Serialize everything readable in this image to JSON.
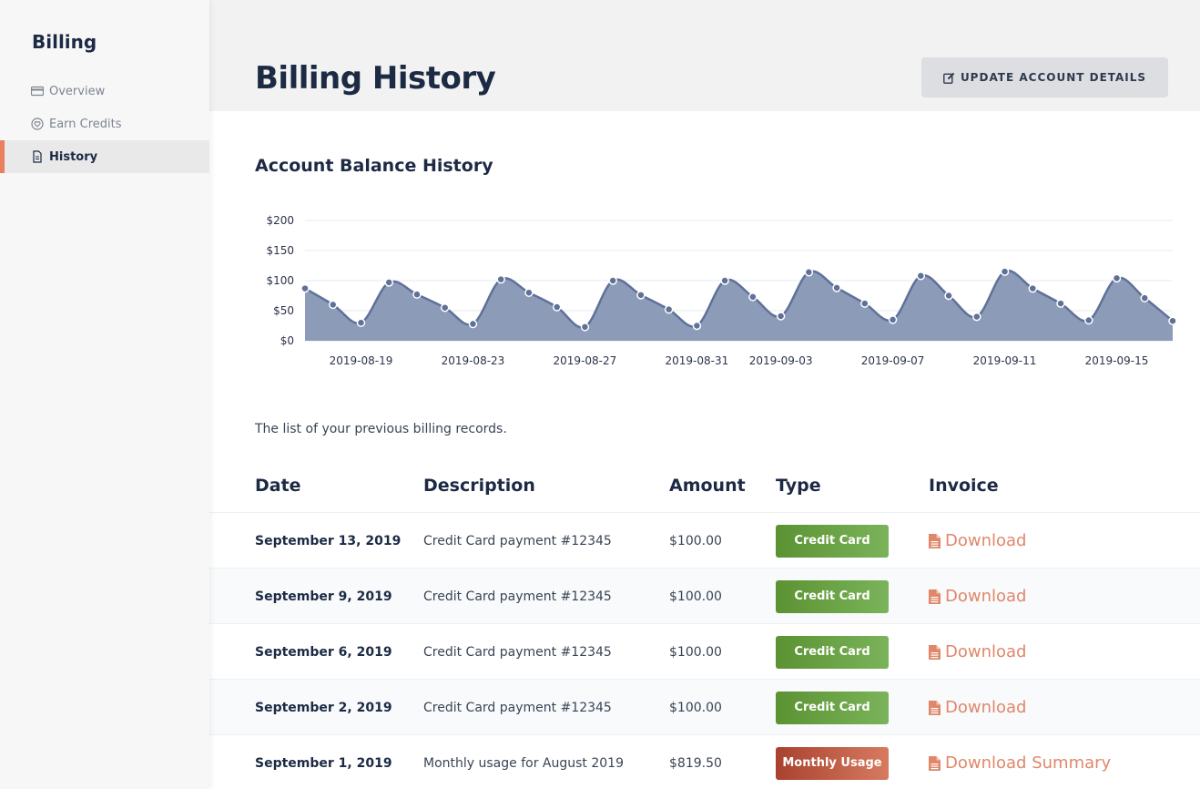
{
  "sidebar": {
    "title": "Billing",
    "items": [
      {
        "label": "Overview",
        "icon": "credit-card-icon"
      },
      {
        "label": "Earn Credits",
        "icon": "heart-badge-icon"
      },
      {
        "label": "History",
        "icon": "document-icon",
        "active": true
      }
    ]
  },
  "header": {
    "title": "Billing History",
    "update_button": "UPDATE ACCOUNT DETAILS"
  },
  "chart_section": {
    "title": "Account Balance History"
  },
  "chart_data": {
    "type": "area",
    "title": "Account Balance History",
    "x": [
      "2019-08-17",
      "2019-08-18",
      "2019-08-19",
      "2019-08-20",
      "2019-08-21",
      "2019-08-22",
      "2019-08-23",
      "2019-08-24",
      "2019-08-25",
      "2019-08-26",
      "2019-08-27",
      "2019-08-28",
      "2019-08-29",
      "2019-08-30",
      "2019-08-31",
      "2019-09-01",
      "2019-09-02",
      "2019-09-03",
      "2019-09-04",
      "2019-09-05",
      "2019-09-06",
      "2019-09-07",
      "2019-09-08",
      "2019-09-09",
      "2019-09-10",
      "2019-09-11",
      "2019-09-12",
      "2019-09-13",
      "2019-09-14",
      "2019-09-15",
      "2019-09-16",
      "2019-09-17"
    ],
    "values": [
      87,
      60,
      30,
      97,
      77,
      55,
      28,
      102,
      80,
      56,
      23,
      100,
      76,
      52,
      25,
      100,
      73,
      41,
      114,
      88,
      62,
      35,
      108,
      75,
      40,
      115,
      87,
      62,
      34,
      104,
      71,
      33
    ],
    "x_tick_labels": [
      "2019-08-19",
      "2019-08-23",
      "2019-08-27",
      "2019-08-31",
      "2019-09-03",
      "2019-09-07",
      "2019-09-11",
      "2019-09-15"
    ],
    "y_tick_labels": [
      "$0",
      "$50",
      "$100",
      "$150",
      "$200"
    ],
    "y_ticks": [
      0,
      50,
      100,
      150,
      200
    ],
    "ylim": [
      0,
      200
    ],
    "grid": true,
    "legend": "none",
    "colors": {
      "fill": "#8c9bb8",
      "line": "#5f7199",
      "point": "#5f7199"
    }
  },
  "list_description": "The list of your previous billing records.",
  "table": {
    "columns": [
      "Date",
      "Description",
      "Amount",
      "Type",
      "Invoice"
    ],
    "rows": [
      {
        "date": "September 13, 2019",
        "description": "Credit Card payment #12345",
        "amount": "$100.00",
        "type": "Credit Card",
        "type_kind": "credit",
        "invoice": "Download"
      },
      {
        "date": "September 9, 2019",
        "description": "Credit Card payment #12345",
        "amount": "$100.00",
        "type": "Credit Card",
        "type_kind": "credit",
        "invoice": "Download"
      },
      {
        "date": "September 6, 2019",
        "description": "Credit Card payment #12345",
        "amount": "$100.00",
        "type": "Credit Card",
        "type_kind": "credit",
        "invoice": "Download"
      },
      {
        "date": "September 2, 2019",
        "description": "Credit Card payment #12345",
        "amount": "$100.00",
        "type": "Credit Card",
        "type_kind": "credit",
        "invoice": "Download"
      },
      {
        "date": "September 1, 2019",
        "description": "Monthly usage for August 2019",
        "amount": "$819.50",
        "type": "Monthly Usage",
        "type_kind": "usage",
        "invoice": "Download Summary"
      }
    ]
  },
  "colors": {
    "accent": "#e8805e",
    "download": "#e0876a",
    "credit_badge": "#6aa245",
    "usage_badge": "#b9533b",
    "title": "#1c2a44"
  }
}
